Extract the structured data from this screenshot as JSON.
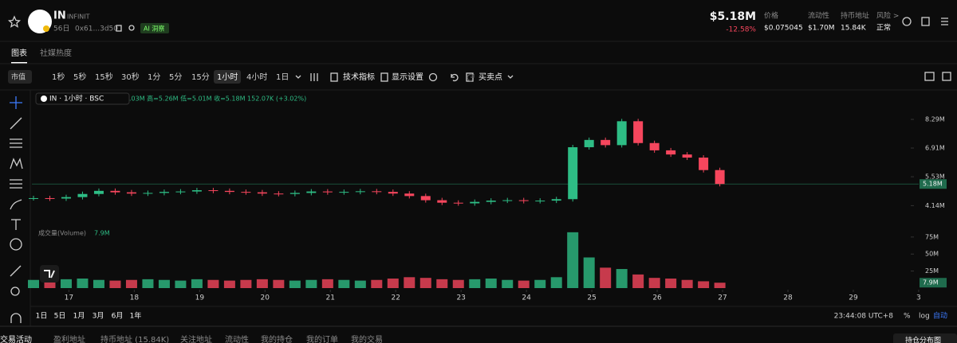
{
  "header": {
    "symbol": "IN",
    "name": "INFINIT",
    "age": "56日",
    "address": "0x61...3d50",
    "ai_badge": "AI 洞察",
    "market_cap": "$5.18M",
    "change": "-12.58%",
    "stats": [
      {
        "label": "价格",
        "value": "$0.075045"
      },
      {
        "label": "流动性",
        "value": "$1.70M"
      },
      {
        "label": "持币地址",
        "value": "15.84K"
      },
      {
        "label": "风险 >",
        "value": "正常"
      }
    ]
  },
  "tabs": [
    "图表",
    "社媒热度"
  ],
  "toolbar": {
    "mode": "市值",
    "intervals": [
      "1秒",
      "5秒",
      "15秒",
      "30秒",
      "1分",
      "5分",
      "15分",
      "1小时",
      "4小时",
      "1日"
    ],
    "active_interval": "1小时",
    "tools": [
      "技术指标",
      "显示设置",
      "买卖点"
    ]
  },
  "chart_data": {
    "type": "candlestick",
    "legend_title": "IN · 1小时 · BSC",
    "legend_values": ".03M 高=5.26M 低=5.01M 收=5.18M 152.07K (+3.02%)",
    "volume_title": "成交量(Volume)",
    "up_color": "#2ebd85",
    "down_color": "#f6465d",
    "grid": false,
    "x": [
      0,
      6,
      12,
      18,
      24,
      30,
      36,
      42,
      48,
      54,
      60,
      66,
      72,
      78,
      84,
      90,
      96,
      102,
      108,
      114,
      120,
      126,
      132,
      138,
      144,
      150,
      156,
      162,
      168,
      174,
      180,
      186,
      192,
      198,
      204,
      210,
      216,
      222,
      228,
      234,
      240,
      246,
      252
    ],
    "close": [
      4500000,
      4480000,
      4550000,
      4700000,
      4850000,
      4780000,
      4720000,
      4750000,
      4800000,
      4820000,
      4880000,
      4850000,
      4800000,
      4780000,
      4720000,
      4700000,
      4750000,
      4820000,
      4780000,
      4800000,
      4830000,
      4800000,
      4720000,
      4600000,
      4400000,
      4280000,
      4250000,
      4320000,
      4380000,
      4400000,
      4360000,
      4380000,
      4450000,
      6950000,
      7300000,
      7050000,
      8200000,
      7150000,
      6800000,
      6600000,
      6450000,
      5850000,
      5180000
    ],
    "volume": [
      12000000,
      11000000,
      13000000,
      14000000,
      12000000,
      11000000,
      12000000,
      13000000,
      12000000,
      11000000,
      13000000,
      12000000,
      11000000,
      12000000,
      13000000,
      12000000,
      11000000,
      12000000,
      13000000,
      12000000,
      11000000,
      12000000,
      14000000,
      16000000,
      15000000,
      13000000,
      12000000,
      13000000,
      14000000,
      12000000,
      11000000,
      12000000,
      16000000,
      82000000,
      45000000,
      30000000,
      28000000,
      20000000,
      15000000,
      14000000,
      12000000,
      10000000,
      7900000
    ],
    "xlim": [
      0,
      330
    ],
    "xticks": [
      {
        "value": 13,
        "label": "17"
      },
      {
        "value": 37,
        "label": "18"
      },
      {
        "value": 61,
        "label": "19"
      },
      {
        "value": 85,
        "label": "20"
      },
      {
        "value": 109,
        "label": "21"
      },
      {
        "value": 133,
        "label": "22"
      },
      {
        "value": 157,
        "label": "23"
      },
      {
        "value": 181,
        "label": "24"
      },
      {
        "value": 205,
        "label": "25"
      },
      {
        "value": 229,
        "label": "26"
      },
      {
        "value": 253,
        "label": "27"
      },
      {
        "value": 277,
        "label": "28"
      },
      {
        "value": 301,
        "label": "29"
      },
      {
        "value": 325,
        "label": "3"
      }
    ],
    "ylim": [
      3120000,
      9630000
    ],
    "yticks": [
      {
        "value": 8290000,
        "label": "8.29M"
      },
      {
        "value": 6910000,
        "label": "6.91M"
      },
      {
        "value": 5530000,
        "label": "5.53M"
      },
      {
        "value": 4140000,
        "label": "4.14M"
      }
    ],
    "current_price": {
      "value": 5180000,
      "label": "5.18M"
    },
    "volume_ylim": [
      0,
      90000000
    ],
    "volume_yticks": [
      {
        "value": 75000000,
        "label": "75M"
      },
      {
        "value": 50000000,
        "label": "50M"
      },
      {
        "value": 25000000,
        "label": "25M"
      }
    ],
    "volume_current": {
      "value": 7900000,
      "label": "7.9M"
    }
  },
  "ranges": [
    "1日",
    "5日",
    "1月",
    "3月",
    "6月",
    "1年"
  ],
  "status": {
    "time": "23:44:08 UTC+8",
    "percent": "%",
    "log": "log",
    "auto": "自动"
  },
  "bottom_tabs": [
    "交易活动",
    "盈利地址",
    "持币地址 (15.84K)",
    "关注地址",
    "流动性",
    "我的持仓",
    "我的订单",
    "我的交易"
  ],
  "distribution_button": "持仓分布图"
}
